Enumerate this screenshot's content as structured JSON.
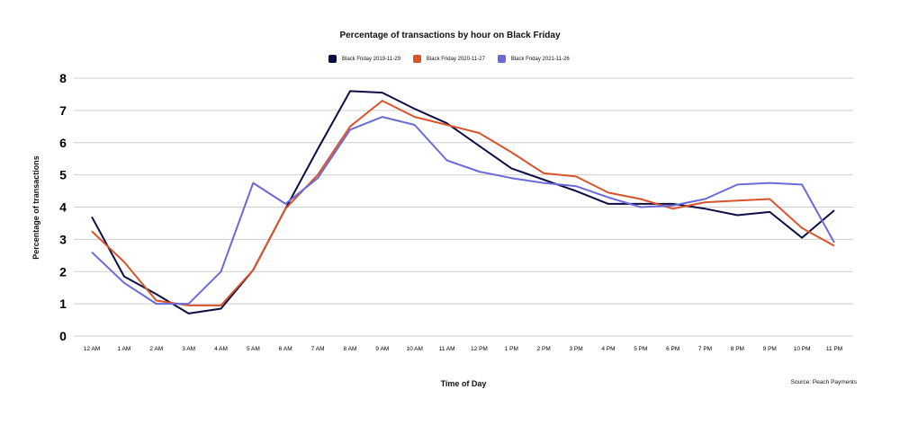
{
  "chart_data": {
    "type": "line",
    "title": "Percentage of transactions by hour on Black Friday",
    "xlabel": "Time of Day",
    "ylabel": "Percentage of transactions",
    "ylim": [
      0,
      8
    ],
    "yticks": [
      "0",
      "1",
      "2",
      "3",
      "4",
      "5",
      "6",
      "7",
      "8"
    ],
    "grid": true,
    "legend_position": "top",
    "categories": [
      "12 AM",
      "1 AM",
      "2 AM",
      "3 AM",
      "4 AM",
      "5 AM",
      "6 AM",
      "7 AM",
      "8 AM",
      "9 AM",
      "10 AM",
      "11 AM",
      "12 PM",
      "1 PM",
      "2 PM",
      "3 PM",
      "4 PM",
      "5 PM",
      "6 PM",
      "7 PM",
      "8 PM",
      "9 PM",
      "10 PM",
      "11 PM"
    ],
    "series": [
      {
        "name": "Black Friday 2019-11-29",
        "color": "#0d0d45",
        "values": [
          3.7,
          1.85,
          1.3,
          0.7,
          0.85,
          2.05,
          3.95,
          5.8,
          7.6,
          7.55,
          7.05,
          6.6,
          5.9,
          5.2,
          4.85,
          4.5,
          4.1,
          4.1,
          4.1,
          3.95,
          3.75,
          3.85,
          3.05,
          3.9
        ]
      },
      {
        "name": "Black Friday 2020-11-27",
        "color": "#d9532b",
        "values": [
          3.25,
          2.3,
          1.1,
          0.95,
          0.95,
          2.05,
          3.95,
          5.0,
          6.5,
          7.3,
          6.8,
          6.55,
          6.3,
          5.7,
          5.05,
          4.95,
          4.45,
          4.25,
          3.95,
          4.15,
          4.2,
          4.25,
          3.35,
          2.8
        ]
      },
      {
        "name": "Black Friday 2021-11-26",
        "color": "#6a6ad8",
        "values": [
          2.6,
          1.65,
          1.0,
          1.0,
          2.0,
          4.75,
          4.1,
          4.9,
          6.4,
          6.8,
          6.55,
          5.45,
          5.1,
          4.9,
          4.75,
          4.65,
          4.3,
          4.0,
          4.05,
          4.25,
          4.7,
          4.75,
          4.7,
          2.9
        ]
      }
    ],
    "source": "Source: Peach Payments"
  }
}
